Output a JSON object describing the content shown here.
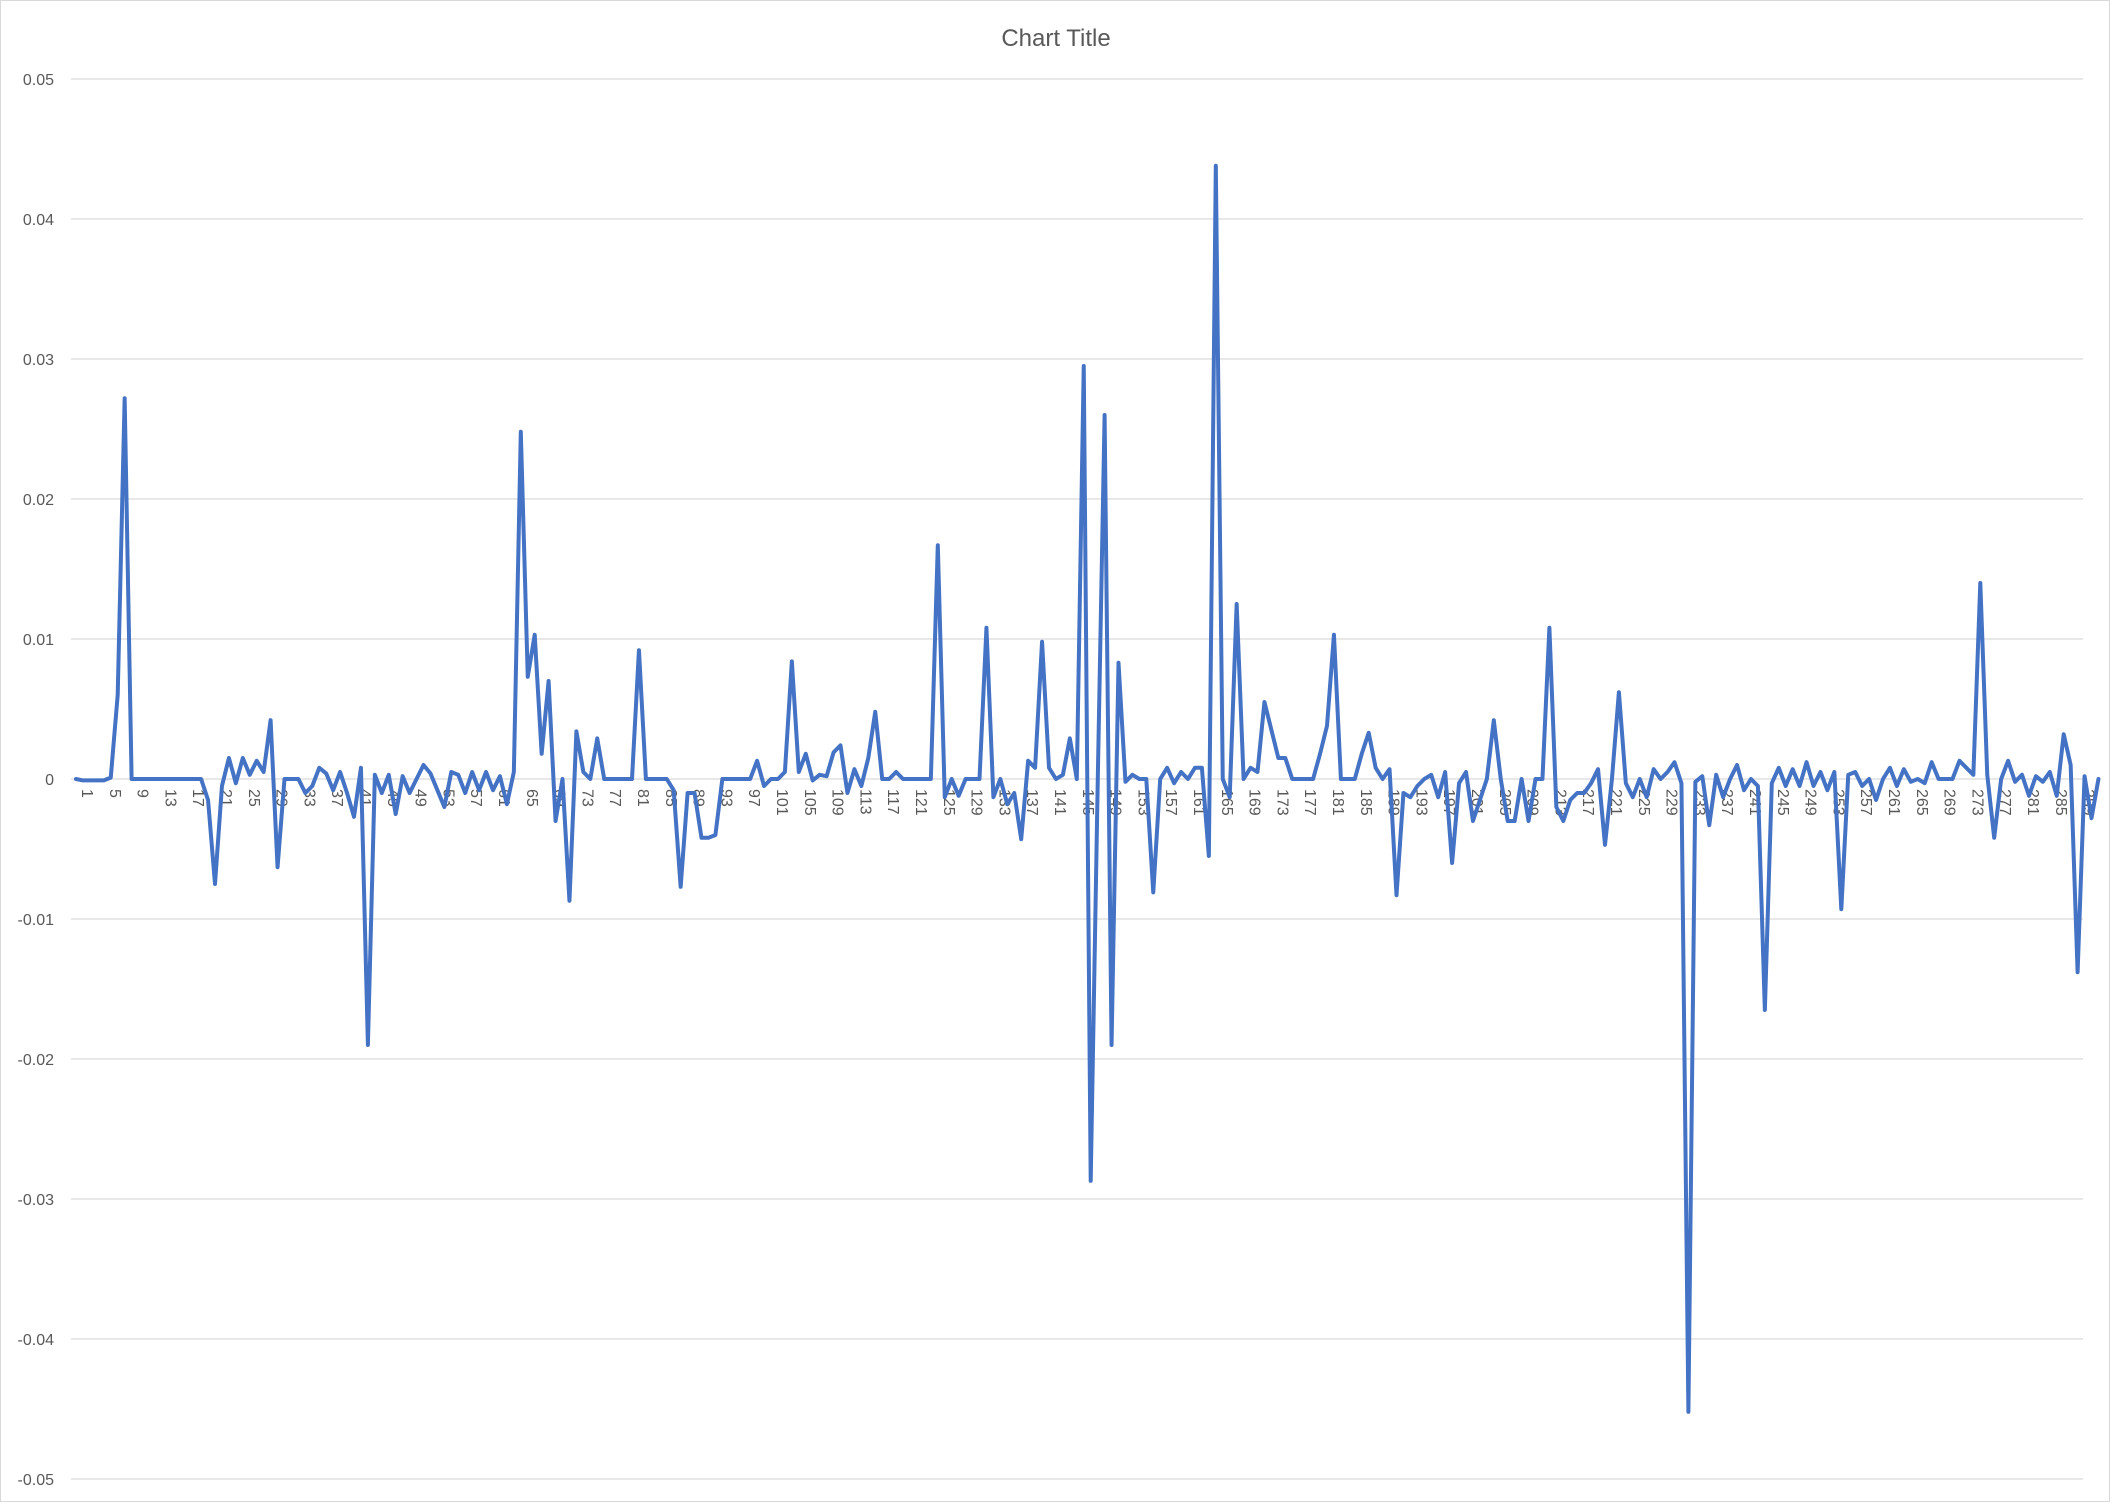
{
  "chart_data": {
    "type": "line",
    "title": "Chart Title",
    "xlabel": "",
    "ylabel": "",
    "ylim": [
      -0.05,
      0.05
    ],
    "ytick_labels": [
      "0.05",
      "0.04",
      "0.03",
      "0.02",
      "0.01",
      "0",
      "-0.01",
      "-0.02",
      "-0.03",
      "-0.04",
      "-0.05"
    ],
    "ytick_values": [
      0.05,
      0.04,
      0.03,
      0.02,
      0.01,
      0,
      -0.01,
      -0.02,
      -0.03,
      -0.04,
      -0.05
    ],
    "x_start": 1,
    "x_end": 290,
    "xtick_labels": [
      "1",
      "5",
      "9",
      "13",
      "17",
      "21",
      "25",
      "29",
      "33",
      "37",
      "41",
      "45",
      "49",
      "53",
      "57",
      "61",
      "65",
      "69",
      "73",
      "77",
      "81",
      "85",
      "89",
      "93",
      "97",
      "101",
      "105",
      "109",
      "113",
      "117",
      "121",
      "125",
      "129",
      "133",
      "137",
      "141",
      "145",
      "149",
      "153",
      "157",
      "161",
      "165",
      "169",
      "173",
      "177",
      "181",
      "185",
      "189",
      "193",
      "197",
      "201",
      "205",
      "209",
      "213",
      "217",
      "221",
      "225",
      "229",
      "233",
      "237",
      "241",
      "245",
      "249",
      "253",
      "257",
      "261",
      "265",
      "269",
      "273",
      "277",
      "281",
      "285",
      "289"
    ],
    "grid": true,
    "legend": "none",
    "series": [
      {
        "color": "#4472C4",
        "points": [
          [
            1,
            0
          ],
          [
            2,
            -0.0001
          ],
          [
            3,
            -0.0001
          ],
          [
            4,
            -0.0001
          ],
          [
            5,
            -0.0001
          ],
          [
            6,
            0.0001
          ],
          [
            7,
            0.006
          ],
          [
            8,
            0.0272
          ],
          [
            9,
            0
          ],
          [
            10,
            0
          ],
          [
            11,
            0
          ],
          [
            12,
            0
          ],
          [
            13,
            0
          ],
          [
            14,
            0
          ],
          [
            15,
            0
          ],
          [
            16,
            0
          ],
          [
            17,
            0
          ],
          [
            18,
            0
          ],
          [
            19,
            0
          ],
          [
            20,
            -0.0015
          ],
          [
            21,
            -0.0075
          ],
          [
            22,
            -0.0005
          ],
          [
            23,
            0.0015
          ],
          [
            24,
            -0.0003
          ],
          [
            25,
            0.0015
          ],
          [
            26,
            0.0003
          ],
          [
            27,
            0.0013
          ],
          [
            28,
            0.0005
          ],
          [
            29,
            0.0042
          ],
          [
            30,
            -0.0063
          ],
          [
            31,
            0
          ],
          [
            32,
            0
          ],
          [
            33,
            0
          ],
          [
            34,
            -0.001
          ],
          [
            35,
            -0.0005
          ],
          [
            36,
            0.0008
          ],
          [
            37,
            0.0004
          ],
          [
            38,
            -0.0008
          ],
          [
            39,
            0.0005
          ],
          [
            40,
            -0.001
          ],
          [
            41,
            -0.0027
          ],
          [
            42,
            0.0008
          ],
          [
            43,
            -0.019
          ],
          [
            44,
            0.0003
          ],
          [
            45,
            -0.001
          ],
          [
            46,
            0.0003
          ],
          [
            47,
            -0.0025
          ],
          [
            48,
            0.0002
          ],
          [
            49,
            -0.001
          ],
          [
            50,
            0
          ],
          [
            51,
            0.001
          ],
          [
            52,
            0.0004
          ],
          [
            53,
            -0.0008
          ],
          [
            54,
            -0.002
          ],
          [
            55,
            0.0005
          ],
          [
            56,
            0.0003
          ],
          [
            57,
            -0.001
          ],
          [
            58,
            0.0005
          ],
          [
            59,
            -0.0008
          ],
          [
            60,
            0.0005
          ],
          [
            61,
            -0.0008
          ],
          [
            62,
            0.0002
          ],
          [
            63,
            -0.0018
          ],
          [
            64,
            0.0005
          ],
          [
            65,
            0.0248
          ],
          [
            66,
            0.0073
          ],
          [
            67,
            0.0103
          ],
          [
            68,
            0.0018
          ],
          [
            69,
            0.007
          ],
          [
            70,
            -0.003
          ],
          [
            71,
            0
          ],
          [
            72,
            -0.0087
          ],
          [
            73,
            0.0034
          ],
          [
            74,
            0.0005
          ],
          [
            75,
            0
          ],
          [
            76,
            0.0029
          ],
          [
            77,
            0
          ],
          [
            78,
            0
          ],
          [
            79,
            0
          ],
          [
            80,
            0
          ],
          [
            81,
            0
          ],
          [
            82,
            0.0092
          ],
          [
            83,
            0
          ],
          [
            84,
            0
          ],
          [
            85,
            0
          ],
          [
            86,
            0
          ],
          [
            87,
            -0.0008
          ],
          [
            88,
            -0.0077
          ],
          [
            89,
            -0.001
          ],
          [
            90,
            -0.001
          ],
          [
            91,
            -0.0042
          ],
          [
            92,
            -0.0042
          ],
          [
            93,
            -0.004
          ],
          [
            94,
            0
          ],
          [
            95,
            0
          ],
          [
            96,
            0
          ],
          [
            97,
            0
          ],
          [
            98,
            0
          ],
          [
            99,
            0.0013
          ],
          [
            100,
            -0.0005
          ],
          [
            101,
            0
          ],
          [
            102,
            0
          ],
          [
            103,
            0.0005
          ],
          [
            104,
            0.0084
          ],
          [
            105,
            0.0005
          ],
          [
            106,
            0.0018
          ],
          [
            107,
            -0.0001
          ],
          [
            108,
            0.0003
          ],
          [
            109,
            0.0002
          ],
          [
            110,
            0.0019
          ],
          [
            111,
            0.0024
          ],
          [
            112,
            -0.001
          ],
          [
            113,
            0.0007
          ],
          [
            114,
            -0.0005
          ],
          [
            115,
            0.0015
          ],
          [
            116,
            0.0048
          ],
          [
            117,
            0
          ],
          [
            118,
            0
          ],
          [
            119,
            0.0005
          ],
          [
            120,
            0
          ],
          [
            121,
            0
          ],
          [
            122,
            0
          ],
          [
            123,
            0
          ],
          [
            124,
            0
          ],
          [
            125,
            0.0167
          ],
          [
            126,
            -0.0013
          ],
          [
            127,
            0
          ],
          [
            128,
            -0.0012
          ],
          [
            129,
            0
          ],
          [
            130,
            0
          ],
          [
            131,
            0
          ],
          [
            132,
            0.0108
          ],
          [
            133,
            -0.0013
          ],
          [
            134,
            0
          ],
          [
            135,
            -0.0018
          ],
          [
            136,
            -0.001
          ],
          [
            137,
            -0.0043
          ],
          [
            138,
            0.0013
          ],
          [
            139,
            0.0008
          ],
          [
            140,
            0.0098
          ],
          [
            141,
            0.0008
          ],
          [
            142,
            0
          ],
          [
            143,
            0.0003
          ],
          [
            144,
            0.0029
          ],
          [
            145,
            0
          ],
          [
            146,
            0.0295
          ],
          [
            147,
            -0.0287
          ],
          [
            148,
            -0.0005
          ],
          [
            149,
            0.026
          ],
          [
            150,
            -0.019
          ],
          [
            151,
            0.0083
          ],
          [
            152,
            -0.0002
          ],
          [
            153,
            0.0003
          ],
          [
            154,
            0
          ],
          [
            155,
            0
          ],
          [
            156,
            -0.0081
          ],
          [
            157,
            0
          ],
          [
            158,
            0.0008
          ],
          [
            159,
            -0.0003
          ],
          [
            160,
            0.0005
          ],
          [
            161,
            0
          ],
          [
            162,
            0.0008
          ],
          [
            163,
            0.0008
          ],
          [
            164,
            -0.0055
          ],
          [
            165,
            0.0438
          ],
          [
            166,
            0
          ],
          [
            167,
            -0.0013
          ],
          [
            168,
            0.0125
          ],
          [
            169,
            0
          ],
          [
            170,
            0.0008
          ],
          [
            171,
            0.0005
          ],
          [
            172,
            0.0055
          ],
          [
            173,
            0.0035
          ],
          [
            174,
            0.0015
          ],
          [
            175,
            0.0015
          ],
          [
            176,
            0
          ],
          [
            177,
            0
          ],
          [
            178,
            0
          ],
          [
            179,
            0
          ],
          [
            180,
            0.0018
          ],
          [
            181,
            0.0038
          ],
          [
            182,
            0.0103
          ],
          [
            183,
            0
          ],
          [
            184,
            0
          ],
          [
            185,
            0
          ],
          [
            186,
            0.0018
          ],
          [
            187,
            0.0033
          ],
          [
            188,
            0.0008
          ],
          [
            189,
            0
          ],
          [
            190,
            0.0007
          ],
          [
            191,
            -0.0083
          ],
          [
            192,
            -0.001
          ],
          [
            193,
            -0.0013
          ],
          [
            194,
            -0.0005
          ],
          [
            195,
            0
          ],
          [
            196,
            0.0003
          ],
          [
            197,
            -0.0013
          ],
          [
            198,
            0.0005
          ],
          [
            199,
            -0.006
          ],
          [
            200,
            -0.0003
          ],
          [
            201,
            0.0005
          ],
          [
            202,
            -0.003
          ],
          [
            203,
            -0.0015
          ],
          [
            204,
            0
          ],
          [
            205,
            0.0042
          ],
          [
            206,
            0
          ],
          [
            207,
            -0.003
          ],
          [
            208,
            -0.003
          ],
          [
            209,
            0
          ],
          [
            210,
            -0.003
          ],
          [
            211,
            0
          ],
          [
            212,
            0
          ],
          [
            213,
            0.0108
          ],
          [
            214,
            -0.002
          ],
          [
            215,
            -0.003
          ],
          [
            216,
            -0.0015
          ],
          [
            217,
            -0.001
          ],
          [
            218,
            -0.001
          ],
          [
            219,
            -0.0003
          ],
          [
            220,
            0.0007
          ],
          [
            221,
            -0.0047
          ],
          [
            222,
            0
          ],
          [
            223,
            0.0062
          ],
          [
            224,
            -0.0003
          ],
          [
            225,
            -0.0013
          ],
          [
            226,
            0
          ],
          [
            227,
            -0.0013
          ],
          [
            228,
            0.0007
          ],
          [
            229,
            0
          ],
          [
            230,
            0.0005
          ],
          [
            231,
            0.0012
          ],
          [
            232,
            -0.0003
          ],
          [
            233,
            -0.0452
          ],
          [
            234,
            -0.0002
          ],
          [
            235,
            0.0002
          ],
          [
            236,
            -0.0033
          ],
          [
            237,
            0.0003
          ],
          [
            238,
            -0.0013
          ],
          [
            239,
            0
          ],
          [
            240,
            0.001
          ],
          [
            241,
            -0.0008
          ],
          [
            242,
            0
          ],
          [
            243,
            -0.0005
          ],
          [
            244,
            -0.0165
          ],
          [
            245,
            -0.0003
          ],
          [
            246,
            0.0008
          ],
          [
            247,
            -0.0005
          ],
          [
            248,
            0.0007
          ],
          [
            249,
            -0.0005
          ],
          [
            250,
            0.0012
          ],
          [
            251,
            -0.0005
          ],
          [
            252,
            0.0005
          ],
          [
            253,
            -0.0008
          ],
          [
            254,
            0.0005
          ],
          [
            255,
            -0.0093
          ],
          [
            256,
            0.0003
          ],
          [
            257,
            0.0005
          ],
          [
            258,
            -0.0005
          ],
          [
            259,
            0
          ],
          [
            260,
            -0.0015
          ],
          [
            261,
            0
          ],
          [
            262,
            0.0008
          ],
          [
            263,
            -0.0005
          ],
          [
            264,
            0.0007
          ],
          [
            265,
            -0.0002
          ],
          [
            266,
            0
          ],
          [
            267,
            -0.0003
          ],
          [
            268,
            0.0012
          ],
          [
            269,
            0
          ],
          [
            270,
            0
          ],
          [
            271,
            0
          ],
          [
            272,
            0.0013
          ],
          [
            273,
            0.0008
          ],
          [
            274,
            0.0003
          ],
          [
            275,
            0.014
          ],
          [
            276,
            0.0003
          ],
          [
            277,
            -0.0042
          ],
          [
            278,
            0
          ],
          [
            279,
            0.0013
          ],
          [
            280,
            -0.0002
          ],
          [
            281,
            0.0003
          ],
          [
            282,
            -0.0012
          ],
          [
            283,
            0.0002
          ],
          [
            284,
            -0.0002
          ],
          [
            285,
            0.0005
          ],
          [
            286,
            -0.0012
          ],
          [
            287,
            0.0032
          ],
          [
            288,
            0.001
          ],
          [
            289,
            -0.0138
          ],
          [
            290,
            0.0002
          ],
          [
            291,
            -0.0028
          ],
          [
            292,
            0
          ]
        ]
      }
    ]
  }
}
